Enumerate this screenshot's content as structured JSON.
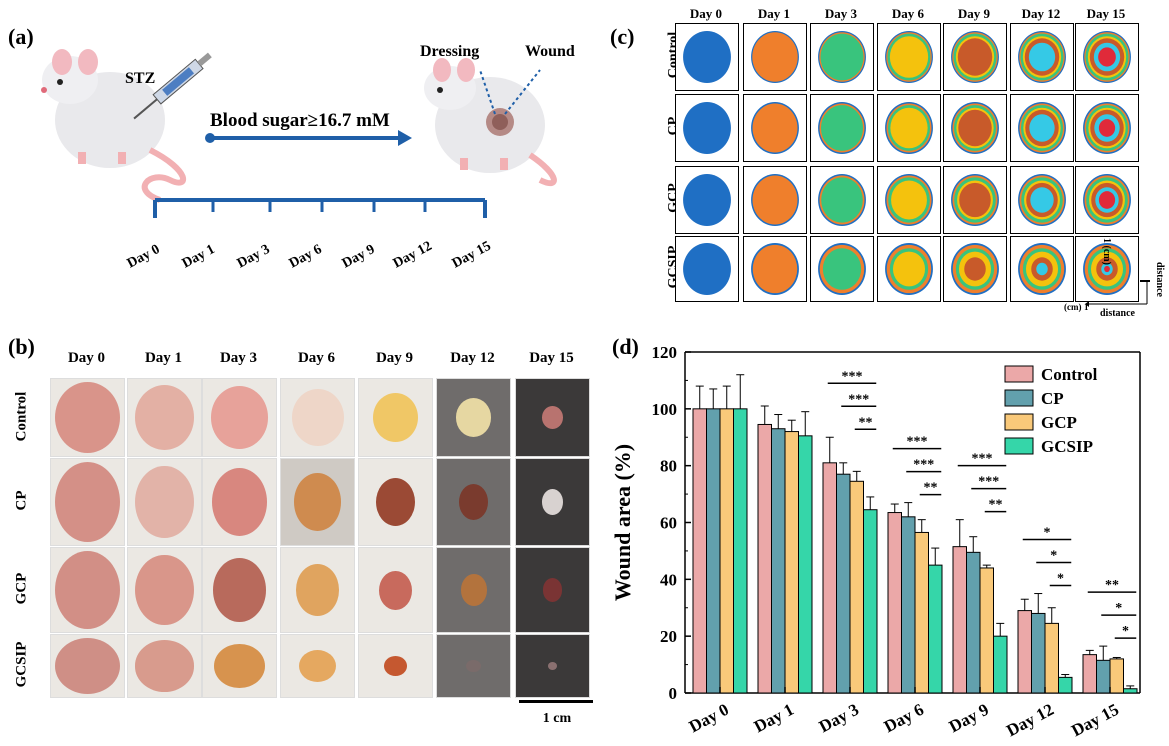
{
  "panels": {
    "a": {
      "label": "(a)",
      "stz": "STZ",
      "blood_sugar": "Blood sugar≥16.7 mM",
      "dressing": "Dressing",
      "wound": "Wound",
      "timeline_days": [
        "Day 0",
        "Day 1",
        "Day 3",
        "Day 6",
        "Day 9",
        "Day 12",
        "Day 15"
      ]
    },
    "b": {
      "label": "(b)",
      "days": [
        "Day 0",
        "Day 1",
        "Day 3",
        "Day 6",
        "Day 9",
        "Day 12",
        "Day 15"
      ],
      "groups": [
        "Control",
        "CP",
        "GCP",
        "GCSIP"
      ],
      "scale_bar": "1 cm"
    },
    "c": {
      "label": "(c)",
      "days": [
        "Day 0",
        "Day 1",
        "Day 3",
        "Day 6",
        "Day 9",
        "Day 12",
        "Day 15"
      ],
      "groups": [
        "Control",
        "CP",
        "GCP",
        "GCSIP"
      ],
      "axis_vertical": "distance",
      "axis_vertical_unit": "1 (cm)",
      "axis_horizontal": "distance",
      "axis_horizontal_unit": "(cm)",
      "axis_horizontal_tick": "1",
      "day_colors": [
        "#1f6fc4",
        "#ef7f2c",
        "#39c47d",
        "#f4c20d",
        "#c85a2a",
        "#35c9e6",
        "#e02a3a"
      ]
    },
    "d": {
      "label": "(d)"
    }
  },
  "chart_data": {
    "type": "bar",
    "title": "",
    "xlabel": "",
    "ylabel": "Wound area (%)",
    "ylim": [
      0,
      120
    ],
    "yticks": [
      "0",
      "20",
      "40",
      "60",
      "80",
      "100",
      "120"
    ],
    "categories": [
      "Day 0",
      "Day 1",
      "Day 3",
      "Day 6",
      "Day 9",
      "Day 12",
      "Day 15"
    ],
    "series": [
      {
        "name": "Control",
        "color": "#eba8a8",
        "values": [
          100,
          94.5,
          81,
          63.5,
          51.5,
          29,
          13.5
        ],
        "errors": [
          8,
          6.5,
          9,
          3,
          9.5,
          4,
          1.5
        ]
      },
      {
        "name": "CP",
        "color": "#62a0ad",
        "values": [
          100,
          93,
          77,
          62,
          49.5,
          28,
          11.5
        ],
        "errors": [
          7,
          5,
          4,
          5,
          5.5,
          7,
          5
        ]
      },
      {
        "name": "GCP",
        "color": "#f9c97a",
        "values": [
          100,
          92,
          74.5,
          56.5,
          44,
          24.5,
          12
        ],
        "errors": [
          8,
          4,
          3.5,
          4.5,
          1,
          5.5,
          0.5
        ]
      },
      {
        "name": "GCSIP",
        "color": "#35d6a9",
        "values": [
          100,
          90.5,
          64.5,
          45,
          20,
          5.5,
          1.5
        ],
        "errors": [
          12,
          8.5,
          4.5,
          6,
          4.5,
          1,
          1
        ]
      }
    ],
    "significance": [
      {
        "category": "Day 3",
        "marks": [
          "***",
          "***",
          "**"
        ]
      },
      {
        "category": "Day 6",
        "marks": [
          "***",
          "***",
          "**"
        ]
      },
      {
        "category": "Day 9",
        "marks": [
          "***",
          "***",
          "**"
        ]
      },
      {
        "category": "Day 12",
        "marks": [
          "*",
          "*",
          "*"
        ]
      },
      {
        "category": "Day 15",
        "marks": [
          "**",
          "*",
          "*"
        ]
      }
    ],
    "legend_position": "top-right"
  }
}
